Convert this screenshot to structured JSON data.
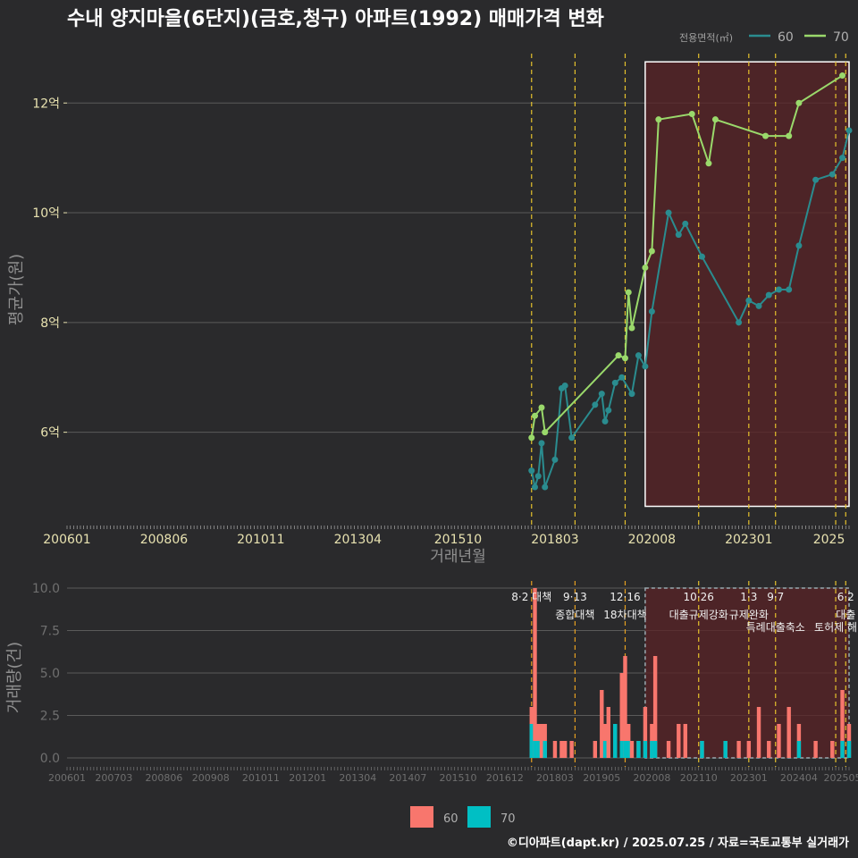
{
  "title": "수내 양지마을(6단지)(금호,청구) 아파트(1992) 매매가격 변화",
  "credit": "©디아파트(dapt.kr) / 2025.07.25 / 자료=국토교통부 실거래가",
  "colors": {
    "background": "#2a2a2c",
    "series60_line": "#2a8c8f",
    "series70_line": "#9ad96b",
    "bar60": "#f8766d",
    "bar70": "#00bfc4",
    "policy_line": "#e6c22c",
    "highlight_fill": "#5a2326",
    "grid": "#5a5a5a",
    "axis_text": "#e8e2b0"
  },
  "price_chart": {
    "ylabel": "평균가(원)",
    "xlabel": "거래년월",
    "legend_title": "전용면적(㎡)",
    "legend": [
      {
        "name": "60",
        "color": "#2a8c8f"
      },
      {
        "name": "70",
        "color": "#9ad96b"
      }
    ],
    "y_ticks": [
      {
        "value": 6,
        "label": "6억"
      },
      {
        "value": 8,
        "label": "8억"
      },
      {
        "value": 10,
        "label": "10억"
      },
      {
        "value": 12,
        "label": "12억"
      }
    ],
    "ylim": [
      4.3,
      12.9
    ],
    "x_ticks": [
      "200601",
      "200806",
      "201011",
      "201304",
      "201510",
      "201803",
      "202008",
      "202301",
      "2025"
    ]
  },
  "volume_chart": {
    "ylabel": "거래량(건)",
    "y_ticks": [
      "0.0",
      "2.5",
      "5.0",
      "7.5",
      "10.0"
    ],
    "ylim": [
      0,
      10
    ],
    "x_ticks": [
      "200601",
      "200703",
      "200806",
      "200908",
      "201011",
      "201201",
      "201304",
      "201407",
      "201510",
      "201612",
      "201803",
      "201905",
      "202008",
      "202110",
      "202301",
      "202404",
      "202505"
    ],
    "legend": [
      {
        "name": "60",
        "color": "#f8766d"
      },
      {
        "name": "70",
        "color": "#00bfc4"
      }
    ]
  },
  "policy_events": [
    {
      "date": "2017.08",
      "line1": "8·2 대책",
      "line2": ""
    },
    {
      "date": "2018.09",
      "line1": "9·13",
      "line2": "종합대책"
    },
    {
      "date": "2019.12",
      "line1": "12·16",
      "line2": "18차대책"
    },
    {
      "date": "2021.10",
      "line1": "10·26",
      "line2": "대출규제강화"
    },
    {
      "date": "2023.01",
      "line1": "1·3",
      "line2": "규제완화"
    },
    {
      "date": "2023.09",
      "line1": "9·7",
      "line2": "특례대출축소"
    },
    {
      "date": "2025.03",
      "line1": "",
      "line2": "토허제 해"
    },
    {
      "date": "2025.06",
      "line1": "6·2",
      "line2": "대출"
    }
  ],
  "highlight_period": {
    "start": "2020.06",
    "end": "2025.07"
  },
  "chart_data": {
    "type": "line",
    "x_axis": "거래년월",
    "y_unit": "억",
    "series": [
      {
        "name": "60",
        "points": [
          [
            "2017.08",
            5.3
          ],
          [
            "2017.09",
            5.0
          ],
          [
            "2017.10",
            5.2
          ],
          [
            "2017.11",
            5.8
          ],
          [
            "2017.12",
            5.0
          ],
          [
            "2018.03",
            5.5
          ],
          [
            "2018.05",
            6.8
          ],
          [
            "2018.06",
            6.85
          ],
          [
            "2018.08",
            5.9
          ],
          [
            "2019.03",
            6.5
          ],
          [
            "2019.05",
            6.7
          ],
          [
            "2019.06",
            6.2
          ],
          [
            "2019.07",
            6.4
          ],
          [
            "2019.09",
            6.9
          ],
          [
            "2019.11",
            7.0
          ],
          [
            "2020.02",
            6.7
          ],
          [
            "2020.04",
            7.4
          ],
          [
            "2020.06",
            7.2
          ],
          [
            "2020.08",
            8.2
          ],
          [
            "2021.01",
            10.0
          ],
          [
            "2021.04",
            9.6
          ],
          [
            "2021.06",
            9.8
          ],
          [
            "2021.11",
            9.2
          ],
          [
            "2022.10",
            8.0
          ],
          [
            "2023.01",
            8.4
          ],
          [
            "2023.04",
            8.3
          ],
          [
            "2023.07",
            8.5
          ],
          [
            "2023.10",
            8.6
          ],
          [
            "2024.01",
            8.6
          ],
          [
            "2024.04",
            9.4
          ],
          [
            "2024.09",
            10.6
          ],
          [
            "2025.02",
            10.7
          ],
          [
            "2025.05",
            11.0
          ],
          [
            "2025.07",
            11.5
          ]
        ]
      },
      {
        "name": "70",
        "points": [
          [
            "2017.08",
            5.9
          ],
          [
            "2017.09",
            6.3
          ],
          [
            "2017.11",
            6.45
          ],
          [
            "2017.12",
            6.0
          ],
          [
            "2019.10",
            7.4
          ],
          [
            "2019.12",
            7.35
          ],
          [
            "2020.01",
            8.55
          ],
          [
            "2020.02",
            7.9
          ],
          [
            "2020.06",
            9.0
          ],
          [
            "2020.08",
            9.3
          ],
          [
            "2020.10",
            11.7
          ],
          [
            "2021.08",
            11.8
          ],
          [
            "2022.01",
            10.9
          ],
          [
            "2022.03",
            11.7
          ],
          [
            "2023.06",
            11.4
          ],
          [
            "2024.01",
            11.4
          ],
          [
            "2024.04",
            12.0
          ],
          [
            "2025.05",
            12.5
          ]
        ]
      }
    ],
    "volume": {
      "categories": [
        "2017.08",
        "2017.09",
        "2017.10",
        "2017.11",
        "2017.12",
        "2018.03",
        "2018.05",
        "2018.06",
        "2018.08",
        "2019.03",
        "2019.05",
        "2019.06",
        "2019.07",
        "2019.09",
        "2019.11",
        "2019.12",
        "2020.01",
        "2020.02",
        "2020.04",
        "2020.06",
        "2020.08",
        "2020.09",
        "2021.01",
        "2021.04",
        "2021.06",
        "2021.11",
        "2022.06",
        "2022.10",
        "2023.01",
        "2023.04",
        "2023.07",
        "2023.10",
        "2024.01",
        "2024.04",
        "2024.09",
        "2025.02",
        "2025.05",
        "2025.07"
      ],
      "series": [
        {
          "name": "60",
          "values": [
            3,
            10,
            2,
            2,
            2,
            1,
            1,
            1,
            1,
            1,
            4,
            2,
            3,
            2,
            5,
            6,
            2,
            1,
            1,
            3,
            2,
            6,
            1,
            2,
            2,
            1,
            1,
            1,
            1,
            3,
            1,
            2,
            3,
            2,
            1,
            1,
            4,
            2
          ]
        },
        {
          "name": "70",
          "values": [
            2,
            1,
            1,
            0,
            1,
            0,
            0,
            0,
            0,
            0,
            0,
            1,
            0,
            2,
            1,
            1,
            1,
            0,
            1,
            1,
            1,
            1,
            0,
            0,
            0,
            1,
            1,
            0,
            0,
            0,
            0,
            0,
            0,
            1,
            0,
            0,
            1,
            1
          ]
        }
      ]
    }
  }
}
